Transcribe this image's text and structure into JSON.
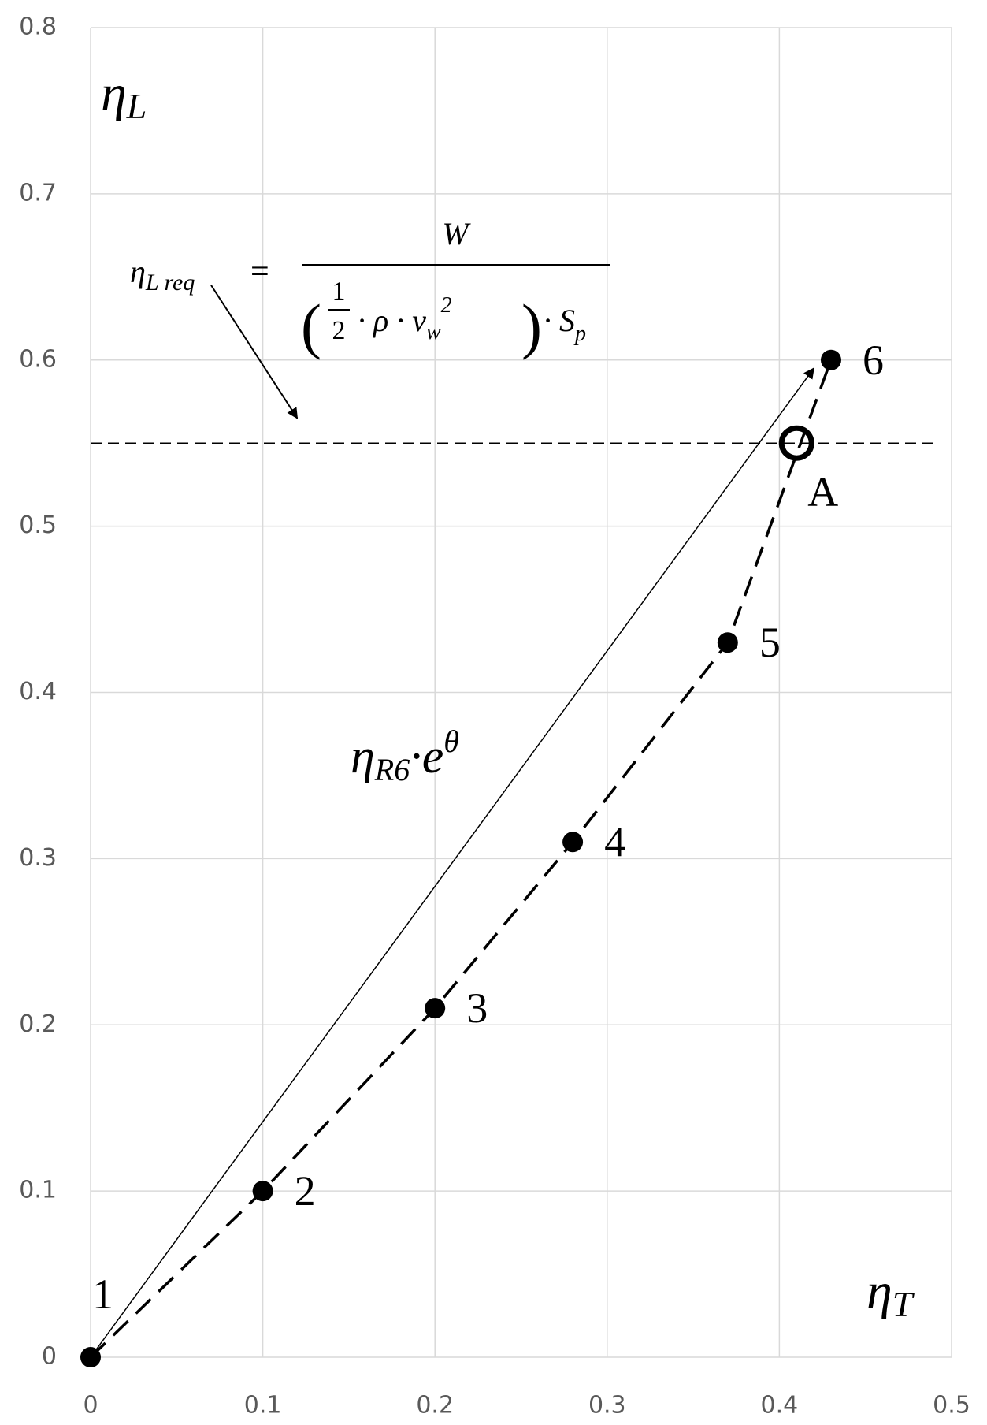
{
  "chart_data": {
    "type": "scatter",
    "x": [
      0,
      0.1,
      0.2,
      0.28,
      0.37,
      0.43
    ],
    "values": [
      0,
      0.1,
      0.21,
      0.31,
      0.43,
      0.6
    ],
    "point_labels": [
      "1",
      "2",
      "3",
      "4",
      "5",
      "6"
    ],
    "color": "#000000",
    "line_style": "dashed",
    "xlim": [
      0,
      0.5
    ],
    "ylim": [
      0,
      0.8
    ],
    "xticks": [
      0,
      0.1,
      0.2,
      0.3,
      0.4,
      0.5
    ],
    "yticks": [
      0,
      0.1,
      0.2,
      0.3,
      0.4,
      0.5,
      0.6,
      0.7,
      0.8
    ],
    "grid": true,
    "x_label": {
      "symbol": "η",
      "sub": "T"
    },
    "y_label": {
      "symbol": "η",
      "sub": "L"
    },
    "marker_A": {
      "label": "A",
      "x": 0.41,
      "y": 0.55
    },
    "hline": {
      "y": 0.55,
      "x_end": 0.49
    },
    "arrow": {
      "x": [
        0,
        0.42
      ],
      "y": [
        0,
        0.595
      ],
      "label": {
        "symbol": "η",
        "sub": "R6",
        "rest": "·e",
        "sup": "θ"
      }
    },
    "formula": {
      "lhs": {
        "symbol": "η",
        "sub": "L req"
      },
      "equals": "=",
      "numerator": "W",
      "open": "(",
      "half_num": "1",
      "half_den": "2",
      "mid": "· ρ · v",
      "mid_sub": "w",
      "mid_sup": "2",
      "close": ")",
      "tail": "· S",
      "tail_sub": "p"
    },
    "formula_arrow": {
      "x": [
        0.07,
        0.12
      ],
      "y": [
        0.645,
        0.565
      ]
    }
  }
}
